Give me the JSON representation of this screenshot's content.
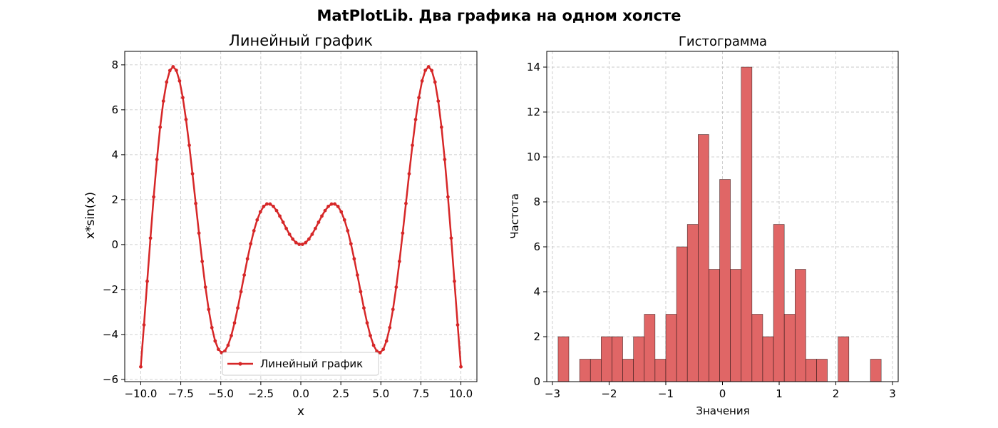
{
  "figure": {
    "suptitle": "MatPlotLib. Два графика на одном холсте"
  },
  "chart_data": [
    {
      "type": "line",
      "title": "Линейный график",
      "xlabel": "x",
      "ylabel": "x*sin(x)",
      "xlim": [
        -11,
        11
      ],
      "ylim": [
        -6.1,
        8.6
      ],
      "xticks": [
        -10.0,
        -7.5,
        -5.0,
        -2.5,
        0.0,
        2.5,
        5.0,
        7.5,
        10.0
      ],
      "xtick_labels": [
        "−10.0",
        "−7.5",
        "−5.0",
        "−2.5",
        "0.0",
        "2.5",
        "5.0",
        "7.5",
        "10.0"
      ],
      "yticks": [
        -6,
        -4,
        -2,
        0,
        2,
        4,
        6,
        8
      ],
      "ytick_labels": [
        "−6",
        "−4",
        "−2",
        "0",
        "2",
        "4",
        "6",
        "8"
      ],
      "grid": true,
      "legend": {
        "position": "bottom-center",
        "entries": [
          "Линейный график"
        ]
      },
      "series": [
        {
          "name": "Линейный график",
          "color": "#d62728",
          "marker": "circle",
          "function": "x*sin(x)",
          "x_range": [
            -10,
            10
          ],
          "num_points": 100
        }
      ]
    },
    {
      "type": "bar",
      "subtype": "histogram",
      "title": "Гистограмма",
      "xlabel": "Значения",
      "ylabel": "Частота",
      "xlim": [
        -3.1,
        3.1
      ],
      "ylim": [
        0,
        14.7
      ],
      "xticks": [
        -3,
        -2,
        -1,
        0,
        1,
        2,
        3
      ],
      "xtick_labels": [
        "−3",
        "−2",
        "−1",
        "0",
        "1",
        "2",
        "3"
      ],
      "yticks": [
        0,
        2,
        4,
        6,
        8,
        10,
        12,
        14
      ],
      "ytick_labels": [
        "0",
        "2",
        "4",
        "6",
        "8",
        "10",
        "12",
        "14"
      ],
      "grid": true,
      "bar_color": "#e06666",
      "edge_color": "#000000",
      "bin_start": -2.9,
      "bin_width": 0.19,
      "values": [
        2,
        0,
        1,
        1,
        2,
        2,
        1,
        2,
        3,
        1,
        3,
        6,
        7,
        11,
        5,
        9,
        5,
        14,
        3,
        2,
        7,
        3,
        5,
        1,
        1,
        0,
        2,
        0,
        0,
        1
      ]
    }
  ]
}
